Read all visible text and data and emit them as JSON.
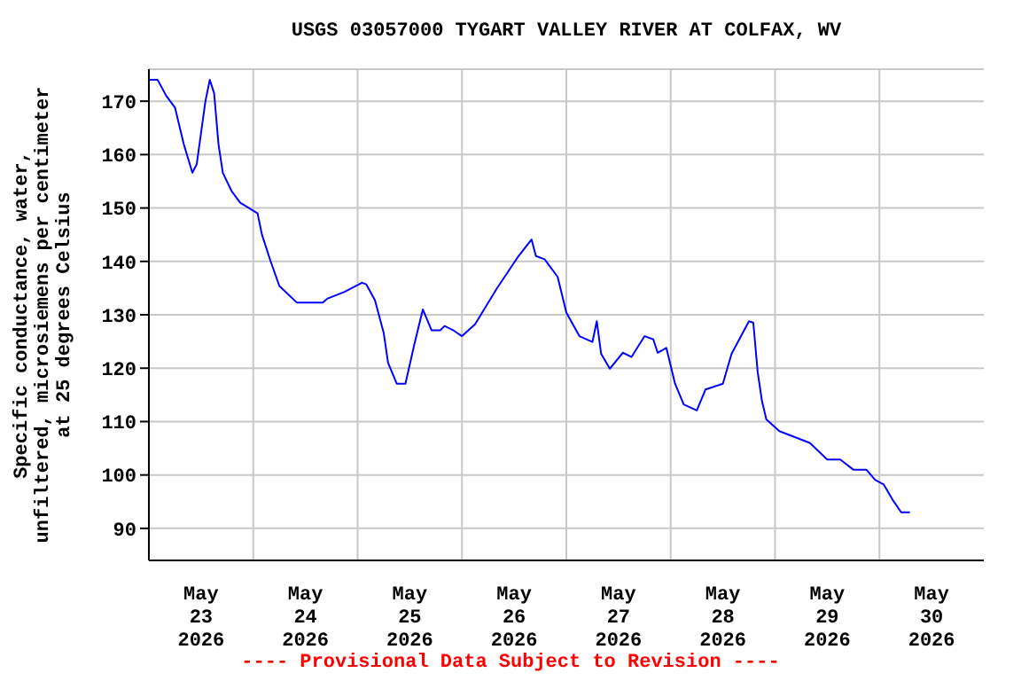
{
  "chart_data": {
    "type": "line",
    "title": "USGS 03057000 TYGART VALLEY RIVER AT COLFAX, WV",
    "ylabel": "Specific conductance, water,\nunfiltered, microsiemens per centimeter\nat 25 degrees Celsius",
    "annotations": [
      "---- Provisional Data Subject to Revision ----"
    ],
    "x": [
      "2026-05-23T00:00",
      "2026-05-23T02:00",
      "2026-05-23T04:00",
      "2026-05-23T06:00",
      "2026-05-23T08:00",
      "2026-05-23T10:00",
      "2026-05-23T11:00",
      "2026-05-23T13:00",
      "2026-05-23T14:00",
      "2026-05-23T15:00",
      "2026-05-23T16:00",
      "2026-05-23T17:00",
      "2026-05-23T19:00",
      "2026-05-23T21:00",
      "2026-05-24T01:00",
      "2026-05-24T02:00",
      "2026-05-24T04:00",
      "2026-05-24T06:00",
      "2026-05-24T10:00",
      "2026-05-24T16:00",
      "2026-05-24T17:00",
      "2026-05-24T21:00",
      "2026-05-25T01:00",
      "2026-05-25T02:00",
      "2026-05-25T04:00",
      "2026-05-25T06:00",
      "2026-05-25T07:00",
      "2026-05-25T09:00",
      "2026-05-25T11:00",
      "2026-05-25T13:00",
      "2026-05-25T15:00",
      "2026-05-25T17:00",
      "2026-05-25T19:00",
      "2026-05-25T20:00",
      "2026-05-25T22:00",
      "2026-05-26T00:00",
      "2026-05-26T03:00",
      "2026-05-26T08:00",
      "2026-05-26T13:00",
      "2026-05-26T16:00",
      "2026-05-26T17:00",
      "2026-05-26T19:00",
      "2026-05-26T22:00",
      "2026-05-27T00:00",
      "2026-05-27T03:00",
      "2026-05-27T06:00",
      "2026-05-27T07:00",
      "2026-05-27T08:00",
      "2026-05-27T10:00",
      "2026-05-27T13:00",
      "2026-05-27T15:00",
      "2026-05-27T18:00",
      "2026-05-27T20:00",
      "2026-05-27T21:00",
      "2026-05-27T23:00",
      "2026-05-28T01:00",
      "2026-05-28T03:00",
      "2026-05-28T06:00",
      "2026-05-28T08:00",
      "2026-05-28T12:00",
      "2026-05-28T14:00",
      "2026-05-28T18:00",
      "2026-05-28T19:00",
      "2026-05-28T20:00",
      "2026-05-28T21:00",
      "2026-05-28T22:00",
      "2026-05-29T01:00",
      "2026-05-29T08:00",
      "2026-05-29T12:00",
      "2026-05-29T15:00",
      "2026-05-29T18:00",
      "2026-05-29T21:00",
      "2026-05-29T23:00",
      "2026-05-30T01:00",
      "2026-05-30T03:00",
      "2026-05-30T05:00",
      "2026-05-30T07:00"
    ],
    "series": [
      {
        "color": "#0000ff",
        "values": [
          174,
          174,
          171,
          168.8,
          162,
          156.6,
          158.2,
          170,
          174,
          171.5,
          162,
          156.6,
          153.2,
          151,
          149,
          145,
          140,
          135.4,
          132.3,
          132.3,
          133,
          134.3,
          136,
          135.7,
          132.7,
          126.6,
          121,
          117.1,
          117.1,
          124.3,
          131,
          127.1,
          127.1,
          127.9,
          127.1,
          126,
          128.2,
          134.9,
          141,
          144.1,
          141,
          140.4,
          137.1,
          130.4,
          126,
          124.9,
          128.8,
          122.7,
          119.9,
          122.9,
          122.1,
          126,
          125.4,
          122.9,
          123.8,
          117.1,
          113.2,
          112.1,
          116,
          117.1,
          122.7,
          128.8,
          128.5,
          119.3,
          113.8,
          110.4,
          108.2,
          106,
          102.9,
          102.9,
          101,
          101,
          99.1,
          98.2,
          95.4,
          93,
          93
        ]
      }
    ],
    "xlim": [
      "2026-05-23T00:00",
      "2026-05-31T00:00"
    ],
    "xticks": [
      {
        "value": "2026-05-23T12:00",
        "label": "May\n23\n2026"
      },
      {
        "value": "2026-05-24T00:00",
        "label": null
      },
      {
        "value": "2026-05-24T12:00",
        "label": "May\n24\n2026"
      },
      {
        "value": "2026-05-25T00:00",
        "label": null
      },
      {
        "value": "2026-05-25T12:00",
        "label": "May\n25\n2026"
      },
      {
        "value": "2026-05-26T00:00",
        "label": null
      },
      {
        "value": "2026-05-26T12:00",
        "label": "May\n26\n2026"
      },
      {
        "value": "2026-05-27T00:00",
        "label": null
      },
      {
        "value": "2026-05-27T12:00",
        "label": "May\n27\n2026"
      },
      {
        "value": "2026-05-28T00:00",
        "label": null
      },
      {
        "value": "2026-05-28T12:00",
        "label": "May\n28\n2026"
      },
      {
        "value": "2026-05-29T00:00",
        "label": null
      },
      {
        "value": "2026-05-29T12:00",
        "label": "May\n29\n2026"
      },
      {
        "value": "2026-05-30T00:00",
        "label": null
      },
      {
        "value": "2026-05-30T12:00",
        "label": "May\n30\n2026"
      }
    ],
    "ylim": [
      84,
      176
    ],
    "yticks": [
      90,
      100,
      110,
      120,
      130,
      140,
      150,
      160,
      170
    ],
    "grid": true,
    "legend": false
  }
}
